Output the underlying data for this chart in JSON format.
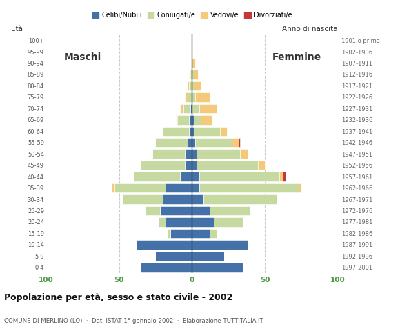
{
  "age_groups_bottom_to_top": [
    "0-4",
    "5-9",
    "10-14",
    "15-19",
    "20-24",
    "25-29",
    "30-34",
    "35-39",
    "40-44",
    "45-49",
    "50-54",
    "55-59",
    "60-64",
    "65-69",
    "70-74",
    "75-79",
    "80-84",
    "85-89",
    "90-94",
    "95-99",
    "100+"
  ],
  "birth_years_bottom_to_top": [
    "1997-2001",
    "1992-1996",
    "1987-1991",
    "1982-1986",
    "1977-1981",
    "1972-1976",
    "1967-1971",
    "1962-1966",
    "1957-1961",
    "1952-1956",
    "1947-1951",
    "1942-1946",
    "1937-1941",
    "1932-1936",
    "1927-1931",
    "1922-1926",
    "1917-1921",
    "1912-1916",
    "1907-1911",
    "1902-1906",
    "1901 o prima"
  ],
  "male_celibe": [
    35,
    25,
    38,
    15,
    18,
    22,
    20,
    18,
    8,
    5,
    5,
    3,
    2,
    2,
    1,
    0,
    0,
    0,
    0,
    0,
    0
  ],
  "male_coniugato": [
    0,
    0,
    0,
    2,
    5,
    10,
    28,
    35,
    32,
    30,
    22,
    22,
    18,
    8,
    5,
    3,
    2,
    1,
    0,
    0,
    0
  ],
  "male_vedovo": [
    0,
    0,
    0,
    0,
    0,
    0,
    0,
    2,
    0,
    0,
    0,
    0,
    0,
    1,
    2,
    2,
    1,
    1,
    0,
    0,
    0
  ],
  "male_divorziato": [
    0,
    0,
    0,
    0,
    0,
    0,
    0,
    0,
    0,
    0,
    0,
    0,
    0,
    0,
    0,
    0,
    0,
    0,
    0,
    0,
    0
  ],
  "female_nubile": [
    35,
    22,
    38,
    12,
    15,
    12,
    8,
    5,
    5,
    3,
    3,
    2,
    1,
    1,
    0,
    0,
    0,
    0,
    0,
    0,
    0
  ],
  "female_coniugata": [
    0,
    0,
    0,
    5,
    20,
    28,
    50,
    68,
    55,
    42,
    30,
    25,
    18,
    5,
    5,
    2,
    1,
    1,
    0,
    0,
    0
  ],
  "female_vedova": [
    0,
    0,
    0,
    0,
    0,
    0,
    0,
    2,
    2,
    5,
    5,
    5,
    5,
    8,
    12,
    10,
    5,
    3,
    2,
    0,
    0
  ],
  "female_divorziata": [
    0,
    0,
    0,
    0,
    0,
    0,
    0,
    0,
    2,
    0,
    0,
    1,
    0,
    0,
    0,
    0,
    0,
    0,
    0,
    0,
    0
  ],
  "colors": {
    "celibe_nubile": "#4472a8",
    "coniugato_a": "#c5d9a0",
    "vedovo_a": "#f5c97a",
    "divorziato_a": "#c0393b"
  },
  "xlim": 100,
  "title": "Popolazione per età, sesso e stato civile - 2002",
  "subtitle": "COMUNE DI MERLINO (LO)  ·  Dati ISTAT 1° gennaio 2002  ·  Elaborazione TUTTITALIA.IT",
  "label_eta": "Età",
  "label_anno": "Anno di nascita",
  "label_maschi": "Maschi",
  "label_femmine": "Femmine",
  "legend_labels": [
    "Celibi/Nubili",
    "Coniugati/e",
    "Vedovi/e",
    "Divorziati/e"
  ],
  "bg_color": "#ffffff",
  "grid_color": "#cccccc",
  "tick_color_x": "#4d9944",
  "bar_height": 0.82
}
